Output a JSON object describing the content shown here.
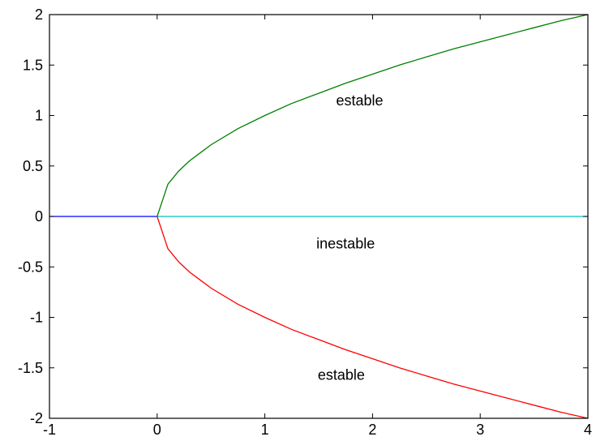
{
  "chart_data": {
    "type": "line",
    "xlim": [
      -1,
      4
    ],
    "ylim": [
      -2,
      2
    ],
    "xticks": [
      -1,
      0,
      1,
      2,
      3,
      4
    ],
    "yticks": [
      -2,
      -1.5,
      -1,
      -0.5,
      0,
      0.5,
      1,
      1.5,
      2
    ],
    "xtick_labels": [
      "-1",
      "0",
      "1",
      "2",
      "3",
      "4"
    ],
    "ytick_labels": [
      "-2",
      "-1.5",
      "-1",
      "-0.5",
      "0",
      "0.5",
      "1",
      "1.5",
      "2"
    ],
    "grid": false,
    "series": [
      {
        "color": "#0000ff",
        "points": [
          [
            -1,
            0
          ],
          [
            0,
            0
          ]
        ]
      },
      {
        "color": "#00bfbf",
        "points": [
          [
            0,
            0
          ],
          [
            4,
            0
          ]
        ]
      },
      {
        "color": "#008000",
        "points": [
          [
            0,
            0
          ],
          [
            0.1,
            0.32
          ],
          [
            0.2,
            0.45
          ],
          [
            0.3,
            0.55
          ],
          [
            0.4,
            0.63
          ],
          [
            0.5,
            0.71
          ],
          [
            0.75,
            0.87
          ],
          [
            1,
            1
          ],
          [
            1.25,
            1.12
          ],
          [
            1.5,
            1.22
          ],
          [
            1.75,
            1.32
          ],
          [
            2,
            1.41
          ],
          [
            2.25,
            1.5
          ],
          [
            2.5,
            1.58
          ],
          [
            2.75,
            1.66
          ],
          [
            3,
            1.73
          ],
          [
            3.25,
            1.8
          ],
          [
            3.5,
            1.87
          ],
          [
            3.75,
            1.94
          ],
          [
            4,
            2
          ]
        ]
      },
      {
        "color": "#ff0000",
        "points": [
          [
            0,
            0
          ],
          [
            0.1,
            -0.32
          ],
          [
            0.2,
            -0.45
          ],
          [
            0.3,
            -0.55
          ],
          [
            0.4,
            -0.63
          ],
          [
            0.5,
            -0.71
          ],
          [
            0.75,
            -0.87
          ],
          [
            1,
            -1
          ],
          [
            1.25,
            -1.12
          ],
          [
            1.5,
            -1.22
          ],
          [
            1.75,
            -1.32
          ],
          [
            2,
            -1.41
          ],
          [
            2.25,
            -1.5
          ],
          [
            2.5,
            -1.58
          ],
          [
            2.75,
            -1.66
          ],
          [
            3,
            -1.73
          ],
          [
            3.25,
            -1.8
          ],
          [
            3.5,
            -1.87
          ],
          [
            3.75,
            -1.94
          ],
          [
            4,
            -2
          ]
        ]
      }
    ],
    "annotations": [
      {
        "text": "estable",
        "x": 1.88,
        "y": 1.15
      },
      {
        "text": "inestable",
        "x": 1.75,
        "y": -0.27
      },
      {
        "text": "estable",
        "x": 1.71,
        "y": -1.57
      }
    ]
  }
}
